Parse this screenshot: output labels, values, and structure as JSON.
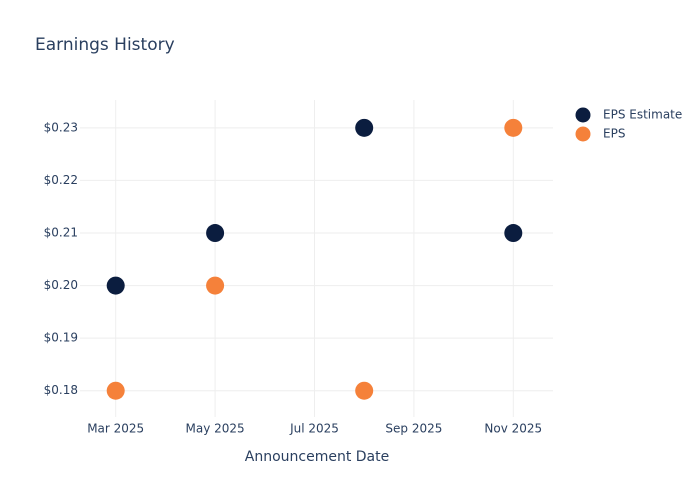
{
  "chart_data": {
    "type": "scatter",
    "title": "Earnings History",
    "x_label": "Announcement Date",
    "x": [
      "2025-03",
      "2025-05",
      "2025-08",
      "2025-11"
    ],
    "series": [
      {
        "name": "EPS Estimate",
        "color": "#0b1d3f",
        "values": [
          0.2,
          0.21,
          0.23,
          0.21
        ]
      },
      {
        "name": "EPS",
        "color": "#f5813a",
        "values": [
          0.18,
          0.2,
          0.18,
          0.23
        ]
      }
    ],
    "xlim": [
      "2025-02",
      "2025-12"
    ],
    "xticks": [
      {
        "value": "2025-03",
        "label": "Mar 2025"
      },
      {
        "value": "2025-05",
        "label": "May 2025"
      },
      {
        "value": "2025-07",
        "label": "Jul 2025"
      },
      {
        "value": "2025-09",
        "label": "Sep 2025"
      },
      {
        "value": "2025-11",
        "label": "Nov 2025"
      }
    ],
    "ylim": [
      0.175,
      0.2353
    ],
    "yticks": [
      {
        "value": 0.18,
        "label": "$0.18"
      },
      {
        "value": 0.19,
        "label": "$0.19"
      },
      {
        "value": 0.2,
        "label": "$0.20"
      },
      {
        "value": 0.21,
        "label": "$0.21"
      },
      {
        "value": 0.22,
        "label": "$0.22"
      },
      {
        "value": 0.23,
        "label": "$0.23"
      }
    ],
    "grid": true,
    "legend": "top-right"
  }
}
